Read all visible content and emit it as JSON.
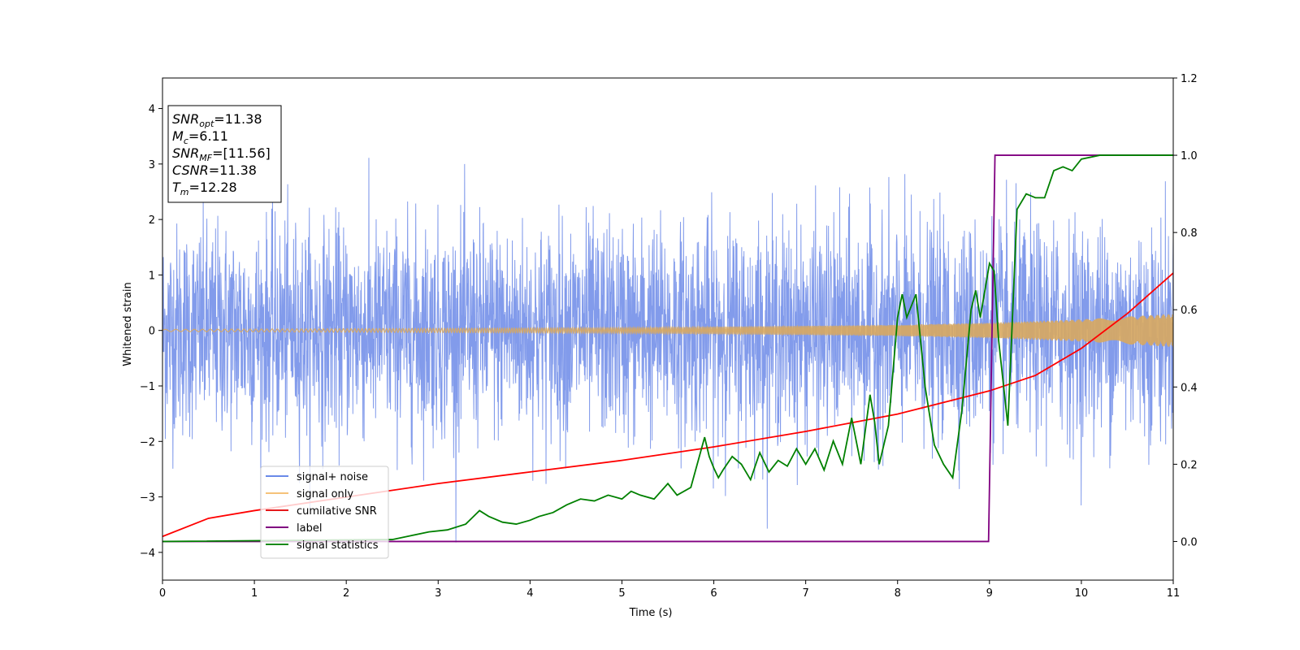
{
  "chart_data": {
    "type": "line",
    "xlabel": "Time (s)",
    "ylabel": "Whitened strain",
    "xlim": [
      0,
      11
    ],
    "ylim_left": [
      -4.5,
      4.55
    ],
    "ylim_right": [
      -0.1,
      1.2
    ],
    "x_ticks": [
      "0",
      "1",
      "2",
      "3",
      "4",
      "5",
      "6",
      "7",
      "8",
      "9",
      "10",
      "11"
    ],
    "y_left_ticks": [
      "4",
      "3",
      "2",
      "1",
      "0",
      "−1",
      "−2",
      "−3",
      "−4"
    ],
    "y_right_ticks": [
      "1.2",
      "1.0",
      "0.8",
      "0.6",
      "0.4",
      "0.2",
      "0.0"
    ],
    "stats_box": [
      {
        "base": "SNR",
        "sub": "opt",
        "rest": "=11.38"
      },
      {
        "base": "M",
        "sub": "c",
        "rest": "=6.11"
      },
      {
        "base": "SNR",
        "sub": "MF",
        "rest": "=[11.56]"
      },
      {
        "base": "CSNR",
        "sub": "",
        "rest": "=11.38"
      },
      {
        "base": "T",
        "sub": "m",
        "rest": "=12.28"
      }
    ],
    "legend": [
      {
        "label": "signal+ noise",
        "color": "#6a8ae8"
      },
      {
        "label": "signal only",
        "color": "#f5c27a"
      },
      {
        "label": "cumilative SNR",
        "color": "#e41a1c"
      },
      {
        "label": "label",
        "color": "#800080"
      },
      {
        "label": "signal statistics",
        "color": "#1a8a1a"
      }
    ],
    "series": [
      {
        "name": "signal+ noise",
        "axis": "left",
        "color": "#7b96ea",
        "noise_std": 0.95,
        "noise_clip": [
          -3.9,
          4.1
        ],
        "x_range": [
          0,
          11
        ]
      },
      {
        "name": "signal only",
        "axis": "left",
        "color": "#d8a85f",
        "envelope": {
          "x": [
            0,
            5,
            8,
            9,
            10,
            11
          ],
          "amp": [
            0.02,
            0.05,
            0.1,
            0.14,
            0.2,
            0.3
          ]
        }
      },
      {
        "name": "cumilative SNR",
        "axis": "right",
        "color": "#ff0000",
        "x": [
          0,
          0.5,
          1,
          2,
          3,
          4,
          5,
          6,
          7,
          8,
          9,
          9.5,
          10,
          10.5,
          11
        ],
        "y": [
          0.013,
          0.06,
          0.08,
          0.115,
          0.15,
          0.18,
          0.21,
          0.245,
          0.285,
          0.33,
          0.39,
          0.43,
          0.5,
          0.59,
          0.695
        ]
      },
      {
        "name": "label",
        "axis": "right",
        "color": "#800080",
        "x": [
          0,
          8.99,
          9.06,
          11
        ],
        "y": [
          0.0,
          0.0,
          1.0,
          1.0
        ]
      },
      {
        "name": "signal statistics",
        "axis": "right",
        "color": "#008000",
        "x": [
          0,
          2.5,
          2.7,
          2.9,
          3.1,
          3.3,
          3.45,
          3.55,
          3.7,
          3.85,
          4.0,
          4.1,
          4.25,
          4.4,
          4.55,
          4.7,
          4.85,
          5.0,
          5.1,
          5.2,
          5.35,
          5.5,
          5.6,
          5.75,
          5.9,
          5.95,
          6.0,
          6.05,
          6.1,
          6.2,
          6.3,
          6.4,
          6.5,
          6.6,
          6.7,
          6.8,
          6.9,
          7.0,
          7.1,
          7.2,
          7.3,
          7.4,
          7.5,
          7.6,
          7.7,
          7.75,
          7.8,
          7.9,
          8.0,
          8.05,
          8.1,
          8.2,
          8.3,
          8.4,
          8.5,
          8.6,
          8.7,
          8.8,
          8.85,
          8.9,
          9.0,
          9.05,
          9.1,
          9.2,
          9.3,
          9.4,
          9.5,
          9.6,
          9.7,
          9.8,
          9.9,
          10.0,
          10.2,
          10.5,
          11.0
        ],
        "y": [
          0.0,
          0.005,
          0.015,
          0.025,
          0.03,
          0.045,
          0.08,
          0.065,
          0.05,
          0.045,
          0.055,
          0.065,
          0.075,
          0.095,
          0.11,
          0.105,
          0.12,
          0.11,
          0.13,
          0.12,
          0.11,
          0.15,
          0.12,
          0.14,
          0.27,
          0.22,
          0.19,
          0.165,
          0.185,
          0.22,
          0.2,
          0.16,
          0.23,
          0.18,
          0.21,
          0.195,
          0.24,
          0.2,
          0.24,
          0.185,
          0.26,
          0.2,
          0.32,
          0.2,
          0.38,
          0.31,
          0.2,
          0.3,
          0.58,
          0.64,
          0.58,
          0.64,
          0.4,
          0.25,
          0.2,
          0.165,
          0.34,
          0.6,
          0.65,
          0.58,
          0.72,
          0.7,
          0.52,
          0.3,
          0.86,
          0.9,
          0.89,
          0.89,
          0.96,
          0.97,
          0.96,
          0.99,
          1.0,
          1.0,
          1.0
        ]
      }
    ]
  }
}
